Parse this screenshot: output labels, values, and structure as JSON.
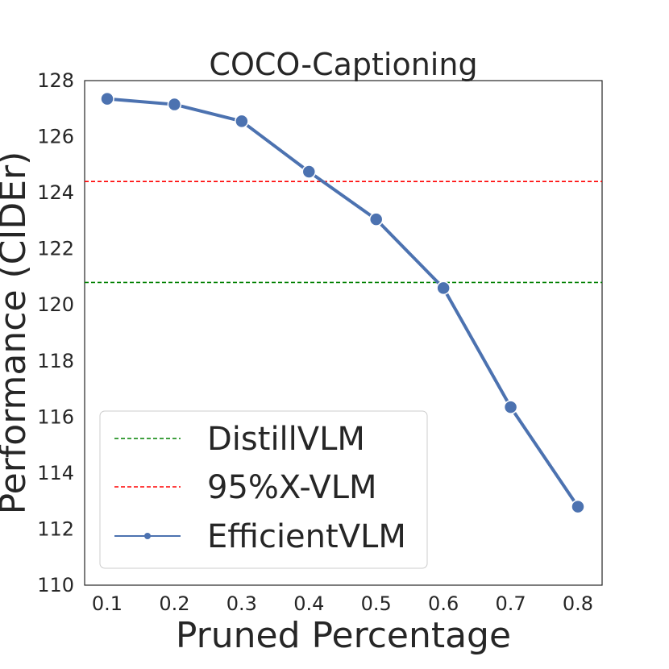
{
  "chart_data": {
    "type": "line",
    "title": "COCO-Captioning",
    "xlabel": "Pruned Percentage",
    "ylabel": "Performance (CIDEr)",
    "x": [
      0.1,
      0.2,
      0.3,
      0.4,
      0.5,
      0.6,
      0.7,
      0.8
    ],
    "x_tick_labels": [
      "0.1",
      "0.2",
      "0.3",
      "0.4",
      "0.5",
      "0.6",
      "0.7",
      "0.8"
    ],
    "ylim": [
      110,
      128
    ],
    "y_ticks": [
      110,
      112,
      114,
      116,
      118,
      120,
      122,
      124,
      126,
      128
    ],
    "y_tick_labels": [
      "110",
      "112",
      "114",
      "116",
      "118",
      "120",
      "122",
      "124",
      "126",
      "128"
    ],
    "series": [
      {
        "name": "EfficientVLM",
        "color": "#4c72b0",
        "values": [
          127.35,
          127.15,
          126.55,
          124.75,
          123.05,
          120.6,
          116.35,
          112.8
        ]
      }
    ],
    "reference_lines": [
      {
        "name": "DistillVLM",
        "value": 120.8,
        "color": "#008000",
        "style": "dashed"
      },
      {
        "name": "95%X-VLM",
        "value": 124.4,
        "color": "#ff0000",
        "style": "dashed"
      }
    ],
    "legend": {
      "placement": "lower-left",
      "entries": [
        "DistillVLM",
        "95%X-VLM",
        "EfficientVLM"
      ]
    },
    "grid": false
  }
}
